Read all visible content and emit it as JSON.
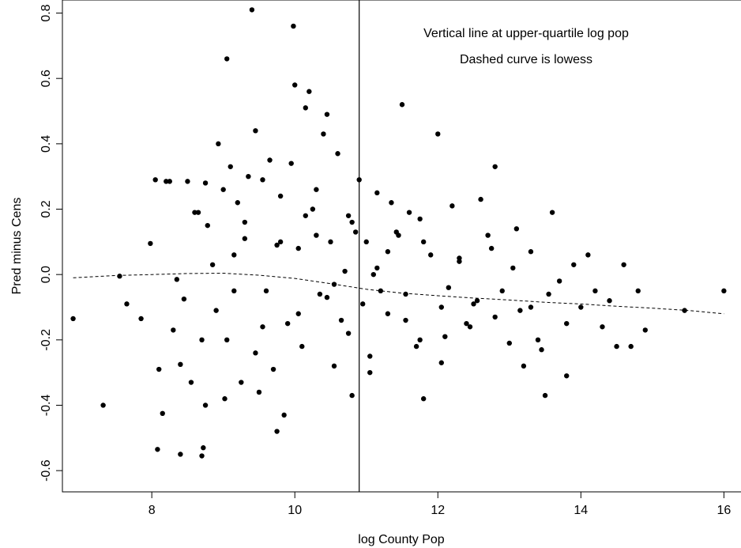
{
  "chart_data": {
    "type": "scatter",
    "title": "",
    "xlabel": "log County Pop",
    "ylabel": "Pred minus Cens",
    "xlim": [
      6.75,
      16.25
    ],
    "ylim": [
      -0.665,
      0.84
    ],
    "xticks": [
      8,
      10,
      12,
      14,
      16
    ],
    "xtick_labels": [
      "8",
      "10",
      "12",
      "14",
      "16"
    ],
    "yticks": [
      -0.6,
      -0.4,
      -0.2,
      0.0,
      0.2,
      0.4,
      0.6,
      0.8
    ],
    "ytick_labels": [
      "-0.6",
      "-0.4",
      "-0.2",
      "0.0",
      "0.2",
      "0.4",
      "0.6",
      "0.8"
    ],
    "grid": false,
    "annotations": [
      "Vertical line at upper-quartile log pop",
      "Dashed curve is lowess"
    ],
    "vertical_line": {
      "x": 10.9
    },
    "lowess": {
      "x": [
        6.9,
        7.5,
        8.0,
        8.5,
        9.0,
        9.5,
        10.0,
        10.5,
        11.0,
        11.5,
        12.0,
        12.5,
        13.0,
        13.5,
        14.0,
        14.5,
        15.0,
        15.5,
        16.0
      ],
      "y": [
        -0.01,
        -0.003,
        0.0,
        0.003,
        0.004,
        -0.002,
        -0.012,
        -0.028,
        -0.045,
        -0.057,
        -0.065,
        -0.072,
        -0.078,
        -0.085,
        -0.09,
        -0.097,
        -0.103,
        -0.11,
        -0.12
      ]
    },
    "points": {
      "x": [
        6.9,
        7.32,
        7.55,
        7.65,
        7.85,
        7.98,
        8.05,
        8.08,
        8.1,
        8.15,
        8.2,
        8.25,
        8.3,
        8.35,
        8.4,
        8.4,
        8.45,
        8.5,
        8.55,
        8.6,
        8.65,
        8.7,
        8.7,
        8.72,
        8.75,
        8.75,
        8.78,
        8.85,
        8.9,
        8.93,
        9.0,
        9.02,
        9.05,
        9.1,
        9.15,
        9.2,
        9.25,
        9.3,
        9.35,
        9.4,
        9.45,
        9.5,
        9.55,
        9.6,
        9.65,
        9.7,
        9.75,
        9.8,
        9.85,
        9.9,
        9.95,
        9.98,
        10.0,
        10.05,
        10.1,
        10.15,
        10.2,
        10.25,
        10.3,
        10.35,
        10.4,
        10.45,
        10.5,
        10.55,
        10.6,
        10.65,
        10.7,
        10.75,
        10.8,
        10.85,
        10.9,
        10.95,
        11.0,
        11.05,
        11.1,
        11.15,
        11.2,
        11.3,
        11.35,
        11.42,
        11.5,
        11.55,
        11.6,
        11.7,
        11.75,
        11.8,
        11.9,
        12.0,
        12.05,
        12.1,
        12.2,
        12.3,
        12.4,
        12.5,
        12.6,
        12.7,
        12.8,
        12.9,
        13.0,
        13.1,
        13.2,
        13.3,
        13.4,
        13.5,
        13.6,
        13.7,
        13.8,
        13.9,
        14.0,
        14.1,
        14.2,
        14.3,
        14.4,
        14.5,
        14.6,
        14.7,
        14.8,
        14.9,
        15.45,
        16.0,
        9.05,
        9.3,
        9.55,
        9.8,
        10.05,
        10.3,
        10.55,
        10.8,
        11.05,
        11.3,
        11.55,
        11.8,
        12.05,
        12.3,
        12.55,
        12.8,
        13.05,
        13.3,
        13.55,
        13.8,
        9.15,
        9.45,
        9.75,
        10.15,
        10.45,
        10.75,
        11.15,
        11.45,
        11.75,
        12.15,
        12.45,
        12.75,
        13.15,
        13.45
      ],
      "y": [
        -0.135,
        -0.4,
        -0.005,
        -0.09,
        -0.135,
        0.095,
        0.29,
        -0.535,
        -0.29,
        -0.425,
        0.285,
        0.285,
        -0.17,
        -0.015,
        -0.55,
        -0.275,
        -0.075,
        0.285,
        -0.33,
        0.19,
        0.19,
        -0.555,
        -0.2,
        -0.53,
        0.28,
        -0.4,
        0.15,
        0.03,
        -0.11,
        0.4,
        0.26,
        -0.38,
        0.66,
        0.33,
        -0.05,
        0.22,
        -0.33,
        0.11,
        0.3,
        0.81,
        0.44,
        -0.36,
        0.29,
        -0.05,
        0.35,
        -0.29,
        -0.48,
        0.1,
        -0.43,
        -0.15,
        0.34,
        0.76,
        0.58,
        0.08,
        -0.22,
        0.51,
        0.56,
        0.2,
        0.12,
        -0.06,
        0.43,
        0.49,
        0.1,
        -0.28,
        0.37,
        -0.14,
        0.01,
        0.18,
        -0.37,
        0.13,
        0.29,
        -0.09,
        0.1,
        -0.3,
        0.0,
        0.25,
        -0.05,
        -0.12,
        0.22,
        0.13,
        0.52,
        -0.06,
        0.19,
        -0.22,
        0.17,
        -0.38,
        0.06,
        0.43,
        -0.1,
        -0.19,
        0.21,
        0.04,
        -0.15,
        -0.09,
        0.23,
        0.12,
        0.33,
        -0.05,
        -0.21,
        0.14,
        -0.28,
        0.07,
        -0.2,
        -0.37,
        0.19,
        -0.02,
        -0.31,
        0.03,
        -0.1,
        0.06,
        -0.05,
        -0.16,
        -0.08,
        -0.22,
        0.03,
        -0.22,
        -0.05,
        -0.17,
        -0.11,
        -0.05,
        -0.2,
        0.16,
        -0.16,
        0.24,
        -0.12,
        0.26,
        -0.03,
        0.16,
        -0.25,
        0.07,
        -0.14,
        0.1,
        -0.27,
        0.05,
        -0.08,
        -0.13,
        0.02,
        -0.1,
        -0.06,
        -0.15,
        0.06,
        -0.24,
        0.09,
        0.18,
        -0.07,
        -0.18,
        0.02,
        0.12,
        -0.2,
        -0.04,
        -0.16,
        0.08,
        -0.11,
        -0.23
      ]
    }
  }
}
